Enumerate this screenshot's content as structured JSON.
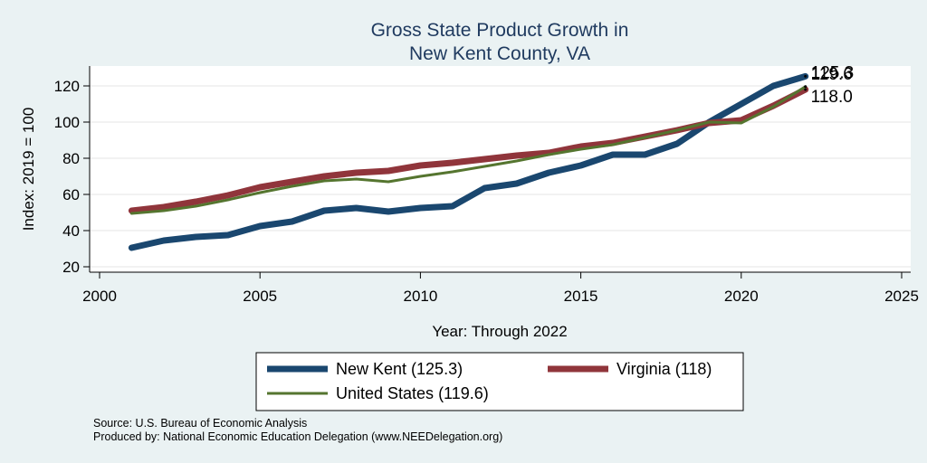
{
  "chart_data": {
    "type": "line",
    "title_lines": [
      "Gross State Product Growth in",
      "New Kent County, VA"
    ],
    "xlabel": "Year: Through 2022",
    "ylabel": "Index: 2019 = 100",
    "xlim": [
      2000,
      2025
    ],
    "ylim": [
      17,
      131
    ],
    "x_ticks": [
      2000,
      2005,
      2010,
      2015,
      2020,
      2025
    ],
    "y_ticks": [
      20,
      40,
      60,
      80,
      100,
      120
    ],
    "grid": true,
    "legend_position": "bottom",
    "x": [
      2001,
      2002,
      2003,
      2004,
      2005,
      2006,
      2007,
      2008,
      2009,
      2010,
      2011,
      2012,
      2013,
      2014,
      2015,
      2016,
      2017,
      2018,
      2019,
      2020,
      2021,
      2022
    ],
    "series": [
      {
        "name": "New Kent",
        "legend_label": "New Kent  (125.3)",
        "end_label": "125.3",
        "color": "#1a476f",
        "values": [
          30.5,
          34.5,
          36.5,
          37.5,
          42.5,
          45,
          51,
          52.5,
          50.5,
          52.5,
          53.5,
          63.5,
          66,
          72,
          76,
          82,
          82,
          88,
          100,
          110,
          120,
          125.3
        ]
      },
      {
        "name": "Virginia",
        "legend_label": "Virginia (118)",
        "end_label": "118.0",
        "color": "#90353b",
        "values": [
          51,
          53,
          56,
          59.5,
          64,
          67,
          70,
          72,
          73,
          76,
          77.5,
          79.5,
          81.5,
          83,
          86.5,
          88.5,
          92,
          95.5,
          99.5,
          101,
          109,
          118
        ]
      },
      {
        "name": "United States",
        "legend_label": "United States (119.6)",
        "end_label": "119.6",
        "color": "#55752f",
        "values": [
          49.5,
          51,
          53.5,
          57,
          61,
          64.5,
          67.5,
          68.5,
          67,
          70,
          72.5,
          75.5,
          78.5,
          82,
          85,
          87.5,
          91.5,
          95.5,
          100,
          99.5,
          108.5,
          119.6
        ]
      }
    ],
    "source_lines": [
      "Source: U.S. Bureau of Economic Analysis",
      "Produced by: National Economic Education Delegation (www.NEEDelegation.org)"
    ]
  }
}
